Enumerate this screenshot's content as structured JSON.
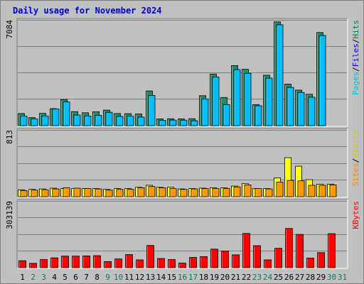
{
  "chart_data": {
    "type": "bar",
    "title": "Daily usage for November 2024",
    "categories": [
      "1",
      "2",
      "3",
      "4",
      "5",
      "6",
      "7",
      "8",
      "9",
      "10",
      "11",
      "12",
      "13",
      "14",
      "15",
      "16",
      "17",
      "18",
      "19",
      "20",
      "21",
      "22",
      "23",
      "24",
      "25",
      "26",
      "27",
      "28",
      "29",
      "30",
      "31"
    ],
    "weekend_days": [
      2,
      3,
      9,
      10,
      16,
      17,
      23,
      24,
      30,
      31
    ],
    "panels": [
      {
        "id": "hits",
        "ymax": 7084,
        "ymax_label": "7084",
        "series": [
          {
            "name": "Hits",
            "color": "#1f8c6a",
            "values": [
              820,
              540,
              830,
              1150,
              1760,
              950,
              870,
              940,
              1050,
              820,
              810,
              790,
              2340,
              460,
              470,
              460,
              470,
              2020,
              3480,
              1900,
              4050,
              3800,
              1420,
              3400,
              7000,
              2800,
              2400,
              2120,
              6280,
              0,
              0
            ]
          },
          {
            "name": "Files",
            "color": "#00bfff",
            "values": [
              650,
              450,
              650,
              1130,
              1600,
              720,
              650,
              700,
              900,
              620,
              640,
              580,
              2040,
              360,
              380,
              370,
              330,
              1800,
              3280,
              1420,
              3780,
              3530,
              1340,
              3200,
              6800,
              2580,
              2240,
              1920,
              6080,
              0,
              0
            ]
          }
        ],
        "legend": [
          "Pages",
          "/",
          "Files",
          "/",
          "Hits"
        ],
        "legend_colors": [
          "#00c0e0",
          "#000000",
          "#0000ff",
          "#000000",
          "#008060"
        ]
      },
      {
        "id": "visits",
        "ymax": 813,
        "ymax_label": "813",
        "series": [
          {
            "name": "Visits",
            "color": "#ffff00",
            "values": [
              85,
              90,
              95,
              105,
              100,
              100,
              100,
              100,
              90,
              100,
              100,
              115,
              140,
              115,
              115,
              95,
              100,
              105,
              110,
              110,
              130,
              160,
              100,
              100,
              230,
              480,
              375,
              210,
              155,
              155,
              0
            ]
          },
          {
            "name": "Sites",
            "color": "#ff9900",
            "values": [
              75,
              80,
              85,
              95,
              110,
              105,
              100,
              95,
              80,
              90,
              90,
              110,
              125,
              110,
              100,
              90,
              95,
              100,
              100,
              100,
              120,
              145,
              100,
              95,
              180,
              200,
              195,
              140,
              140,
              145,
              0
            ]
          }
        ],
        "legend": [
          "Sites",
          "/",
          "Visits"
        ],
        "legend_colors": [
          "#ff8800",
          "#000000",
          "#cccc00"
        ]
      },
      {
        "id": "kbytes",
        "ymax": 303139,
        "ymax_label": "303139",
        "series": [
          {
            "name": "KBytes",
            "color": "#ff0000",
            "values": [
              32000,
              20000,
              37000,
              45000,
              53000,
              53000,
              54000,
              55000,
              28000,
              40000,
              60000,
              36000,
              102000,
              42000,
              37000,
              21000,
              47000,
              51000,
              85000,
              76000,
              59000,
              157000,
              101000,
              36000,
              89000,
              180000,
              153000,
              44000,
              69000,
              156000,
              0
            ]
          }
        ],
        "legend": [
          "KBytes"
        ],
        "legend_colors": [
          "#ff0000"
        ]
      }
    ]
  }
}
